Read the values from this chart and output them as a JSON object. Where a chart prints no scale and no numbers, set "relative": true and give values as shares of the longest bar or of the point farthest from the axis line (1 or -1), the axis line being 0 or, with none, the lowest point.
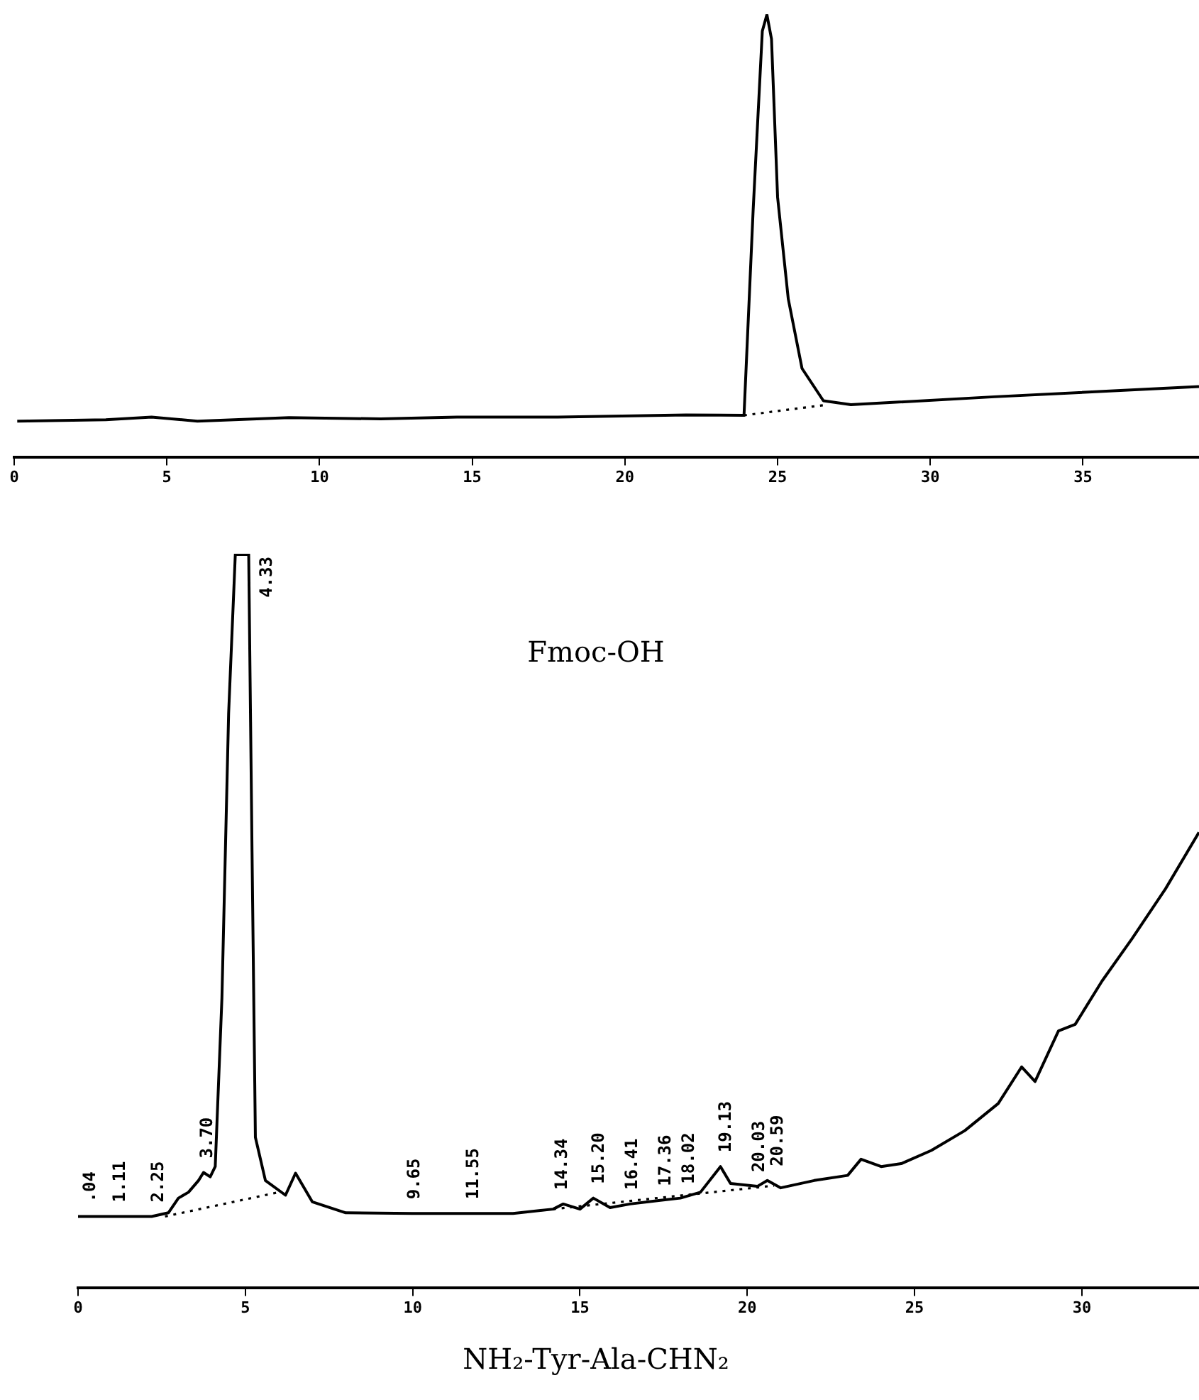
{
  "chart_data": [
    {
      "type": "line",
      "xlabel": "Fmoc-OH",
      "relative": true,
      "xlim": [
        0,
        38.8
      ],
      "xticks": [
        0,
        5,
        10,
        15,
        20,
        25,
        30,
        35
      ],
      "legend": false,
      "grid": false,
      "marker": "none",
      "series": [
        {
          "color": "#000000",
          "line_style": "solid",
          "x": [
            0.1,
            3,
            4.5,
            6,
            9,
            12,
            14.5,
            17.8,
            22,
            23.9,
            24.2,
            24.5,
            24.65,
            24.8,
            25.0,
            25.35,
            25.8,
            26.5,
            27.4,
            32.1,
            38.8
          ],
          "values": [
            0.081,
            0.084,
            0.09,
            0.081,
            0.089,
            0.086,
            0.09,
            0.09,
            0.095,
            0.094,
            0.559,
            0.963,
            1,
            0.945,
            0.587,
            0.357,
            0.2,
            0.127,
            0.118,
            0.136,
            0.159
          ]
        },
        {
          "color": "#000000",
          "line_style": "dotted",
          "x": [
            23.9,
            26.5
          ],
          "values": [
            0.094,
            0.117
          ]
        }
      ]
    },
    {
      "type": "line",
      "xlabel": "NH₂-Tyr-Ala-CHN₂",
      "relative": true,
      "xlim": [
        0,
        33.5
      ],
      "xticks": [
        0,
        5,
        10,
        15,
        20,
        25,
        30
      ],
      "legend": false,
      "grid": false,
      "marker": "none",
      "series": [
        {
          "color": "#000000",
          "line_style": "solid",
          "x": [
            0,
            2.2,
            2.7,
            3.0,
            3.3,
            3.6,
            3.75,
            3.95,
            4.1,
            4.3,
            4.5,
            4.7,
            5.1,
            5.2,
            5.3,
            5.6,
            6.2,
            6.5,
            7.0,
            8.0,
            10,
            13,
            14.2,
            14.5,
            15.0,
            15.4,
            15.9,
            16.5,
            17.4,
            18.0,
            18.6,
            19.2,
            19.5,
            20.3,
            20.6,
            21.0,
            22,
            23,
            23.4,
            24,
            24.6,
            25.5,
            26.5,
            27.5,
            28.2,
            28.6,
            29.3,
            29.8,
            30.6,
            31.5,
            32.5,
            33.5
          ],
          "values": [
            0.097,
            0.097,
            0.102,
            0.122,
            0.13,
            0.146,
            0.157,
            0.151,
            0.165,
            0.395,
            0.783,
            1,
            1,
            0.594,
            0.205,
            0.146,
            0.126,
            0.156,
            0.117,
            0.102,
            0.101,
            0.101,
            0.107,
            0.114,
            0.107,
            0.122,
            0.109,
            0.114,
            0.119,
            0.122,
            0.13,
            0.165,
            0.142,
            0.138,
            0.146,
            0.136,
            0.146,
            0.153,
            0.175,
            0.165,
            0.169,
            0.187,
            0.214,
            0.251,
            0.301,
            0.281,
            0.35,
            0.359,
            0.418,
            0.476,
            0.544,
            0.621
          ]
        },
        {
          "color": "#000000",
          "line_style": "dotted",
          "x": [
            2.6,
            6.0,
            10,
            14.2,
            20.8
          ],
          "values": [
            0.097,
            0.13,
            null,
            0.107,
            0.139
          ]
        }
      ],
      "annotations": [
        {
          "text": ".04",
          "x": 0.2,
          "y": 0.097
        },
        {
          "text": "1.11",
          "x": 1.1,
          "y": 0.097
        },
        {
          "text": "2.25",
          "x": 2.25,
          "y": 0.097
        },
        {
          "text": "3.70",
          "x": 3.7,
          "y": 0.157
        },
        {
          "text": "4.33",
          "x": 4.8,
          "y": 1
        },
        {
          "text": "9.65",
          "x": 9.9,
          "y": 0.101
        },
        {
          "text": "11.55",
          "x": 11.65,
          "y": 0.101
        },
        {
          "text": "14.34",
          "x": 14.3,
          "y": 0.114
        },
        {
          "text": "15.20",
          "x": 15.4,
          "y": 0.122
        },
        {
          "text": "16.41",
          "x": 16.4,
          "y": 0.114
        },
        {
          "text": "17.36",
          "x": 17.4,
          "y": 0.119
        },
        {
          "text": "18.02",
          "x": 18.1,
          "y": 0.122
        },
        {
          "text": "19.13",
          "x": 19.2,
          "y": 0.165
        },
        {
          "text": "20.03",
          "x": 20.2,
          "y": 0.138
        },
        {
          "text": "20.59",
          "x": 20.75,
          "y": 0.146
        }
      ]
    }
  ]
}
